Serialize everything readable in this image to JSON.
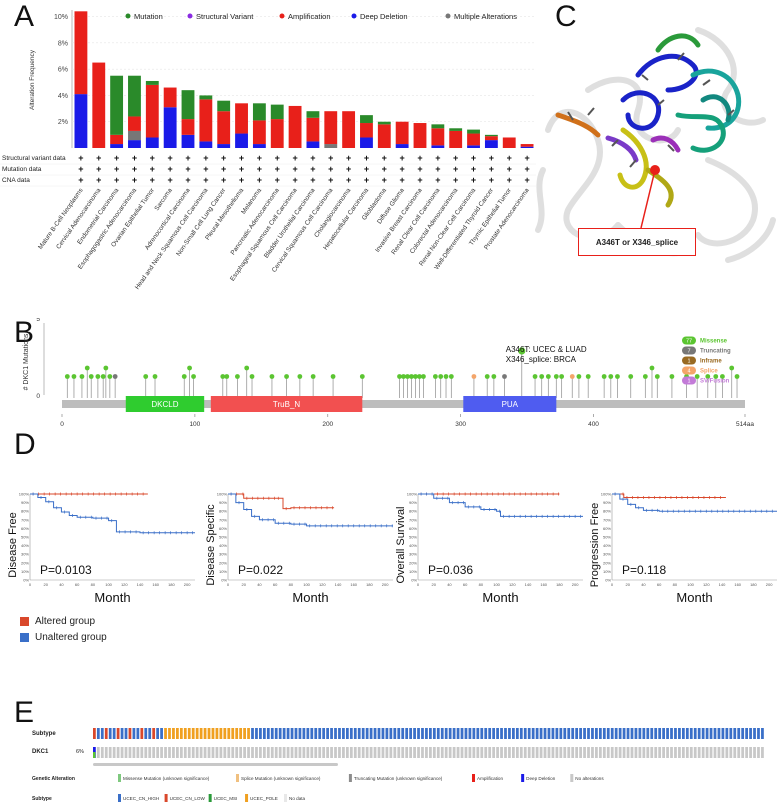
{
  "panels": {
    "a": "A",
    "b": "B",
    "c": "C",
    "d": "D",
    "e": "E"
  },
  "panel_a": {
    "legend": [
      {
        "label": "Mutation",
        "color": "#2a8a2a"
      },
      {
        "label": "Structural Variant",
        "color": "#8a2be2"
      },
      {
        "label": "Amplification",
        "color": "#e8201a"
      },
      {
        "label": "Deep Deletion",
        "color": "#1a1ae8"
      },
      {
        "label": "Multiple Alterations",
        "color": "#777777"
      }
    ],
    "row_labels": [
      "Structural variant data",
      "Mutation data",
      "CNA data"
    ],
    "ylabel": "Alteration Frequency"
  },
  "chart_data": [
    {
      "type": "bar",
      "stacked": true,
      "ylabel": "Alteration Frequency",
      "yticks": [
        "2%",
        "4%",
        "6%",
        "8%",
        "10%"
      ],
      "ylim": [
        0,
        10.5
      ],
      "categories": [
        "Mature B-Cell Neoplasms",
        "Cervical Adenocarcinoma",
        "Endometrial Carcinoma",
        "Esophagogastric Adenocarcinoma",
        "Ovarian Epithelial Tumor",
        "Sarcoma",
        "Adrenocortical Carcinoma",
        "Head and Neck Squamous Cell Carcinoma",
        "Non-Small Cell Lung Cancer",
        "Pleural Mesothelioma",
        "Melanoma",
        "Pancreatic Adenocarcinoma",
        "Esophageal Squamous Cell Carcinoma",
        "Bladder Urothelial Carcinoma",
        "Cervical Squamous Cell Carcinoma",
        "Cholangiocarcinoma",
        "Hepatocellular Carcinoma",
        "Glioblastoma",
        "Diffuse Glioma",
        "Invasive Breast Carcinoma",
        "Renal Clear Cell Carcinoma",
        "Colorectal Adenocarcinoma",
        "Renal Non-Clear Cell Carcinoma",
        "Well-Differentiated Thyroid Cancer",
        "Thymic Epithelial Tumor",
        "Prostate Adenocarcinoma"
      ],
      "series": [
        {
          "name": "Deep Deletion",
          "color": "#1a1ae8",
          "values": [
            4.1,
            0,
            0.3,
            0.6,
            0.8,
            3.1,
            1.0,
            0.5,
            0.3,
            1.1,
            0.3,
            0,
            0,
            0.5,
            0,
            0,
            0.8,
            0,
            0.3,
            0,
            0.2,
            0,
            0.2,
            0.6,
            0,
            0.1
          ]
        },
        {
          "name": "Multiple Alterations",
          "color": "#777777",
          "values": [
            0,
            0,
            0,
            0.7,
            0,
            0,
            0,
            0,
            0,
            0,
            0,
            0,
            0,
            0,
            0.3,
            0,
            0,
            0,
            0,
            0,
            0,
            0,
            0,
            0,
            0,
            0
          ]
        },
        {
          "name": "Amplification",
          "color": "#e8201a",
          "values": [
            6.3,
            6.5,
            0.7,
            1.1,
            4.0,
            1.5,
            1.2,
            3.2,
            2.5,
            2.3,
            1.8,
            2.2,
            3.2,
            1.8,
            2.5,
            2.8,
            1.1,
            1.8,
            1.7,
            1.9,
            1.3,
            1.3,
            0.9,
            0.3,
            0.8,
            0.2
          ]
        },
        {
          "name": "Structural Variant",
          "color": "#8a2be2",
          "values": [
            0,
            0,
            0,
            0,
            0,
            0,
            0,
            0,
            0,
            0,
            0,
            0,
            0,
            0,
            0,
            0,
            0,
            0,
            0,
            0,
            0,
            0,
            0,
            0,
            0,
            0
          ]
        },
        {
          "name": "Mutation",
          "color": "#2a8a2a",
          "values": [
            0,
            0,
            4.5,
            3.1,
            0.3,
            0,
            2.2,
            0.3,
            0.8,
            0,
            1.3,
            1.1,
            0,
            0.5,
            0,
            0,
            0.6,
            0.2,
            0,
            0,
            0.3,
            0.2,
            0.3,
            0.1,
            0,
            0
          ]
        }
      ]
    },
    {
      "type": "lollipop",
      "ylabel": "# DKC1 Mutations",
      "yticks": [
        "0",
        "5"
      ],
      "xticks": [
        "0",
        "100",
        "200",
        "300",
        "400",
        "514aa"
      ],
      "xlim": [
        0,
        514
      ],
      "domains": [
        {
          "name": "DKCLD",
          "start": 48,
          "end": 107,
          "color": "#2fcc2f"
        },
        {
          "name": "TruB_N",
          "start": 112,
          "end": 226,
          "color": "#f25050"
        },
        {
          "name": "PUA",
          "start": 302,
          "end": 372,
          "color": "#4f5cf0"
        }
      ],
      "annotation": [
        "A346T: UCEC & LUAD",
        "X346_splice: BRCA"
      ],
      "legend": [
        {
          "count": "77",
          "label": "Missense",
          "color": "#5bc531"
        },
        {
          "count": "7",
          "label": "Truncating",
          "color": "#777777"
        },
        {
          "count": "1",
          "label": "Inframe",
          "color": "#996a22"
        },
        {
          "count": "4",
          "label": "Splice",
          "color": "#f4a56a"
        },
        {
          "count": "1",
          "label": "SV/Fusion",
          "color": "#c37bd8"
        }
      ],
      "mutations": [
        {
          "pos": 4,
          "count": 1,
          "type": "missense"
        },
        {
          "pos": 9,
          "count": 1,
          "type": "missense"
        },
        {
          "pos": 15,
          "count": 1,
          "type": "missense"
        },
        {
          "pos": 19,
          "count": 2,
          "type": "missense"
        },
        {
          "pos": 22,
          "count": 1,
          "type": "missense"
        },
        {
          "pos": 27,
          "count": 1,
          "type": "missense"
        },
        {
          "pos": 31,
          "count": 1,
          "type": "missense"
        },
        {
          "pos": 33,
          "count": 2,
          "type": "missense"
        },
        {
          "pos": 36,
          "count": 1,
          "type": "missense"
        },
        {
          "pos": 40,
          "count": 1,
          "type": "truncating"
        },
        {
          "pos": 63,
          "count": 1,
          "type": "missense"
        },
        {
          "pos": 70,
          "count": 1,
          "type": "missense"
        },
        {
          "pos": 92,
          "count": 1,
          "type": "missense"
        },
        {
          "pos": 96,
          "count": 2,
          "type": "missense"
        },
        {
          "pos": 99,
          "count": 1,
          "type": "missense"
        },
        {
          "pos": 121,
          "count": 1,
          "type": "missense"
        },
        {
          "pos": 124,
          "count": 1,
          "type": "missense"
        },
        {
          "pos": 132,
          "count": 1,
          "type": "missense"
        },
        {
          "pos": 139,
          "count": 2,
          "type": "missense"
        },
        {
          "pos": 143,
          "count": 1,
          "type": "missense"
        },
        {
          "pos": 158,
          "count": 1,
          "type": "missense"
        },
        {
          "pos": 169,
          "count": 1,
          "type": "missense"
        },
        {
          "pos": 179,
          "count": 1,
          "type": "missense"
        },
        {
          "pos": 189,
          "count": 1,
          "type": "missense"
        },
        {
          "pos": 204,
          "count": 1,
          "type": "missense"
        },
        {
          "pos": 226,
          "count": 1,
          "type": "missense"
        },
        {
          "pos": 254,
          "count": 1,
          "type": "missense"
        },
        {
          "pos": 257,
          "count": 1,
          "type": "missense"
        },
        {
          "pos": 260,
          "count": 1,
          "type": "missense"
        },
        {
          "pos": 263,
          "count": 1,
          "type": "missense"
        },
        {
          "pos": 266,
          "count": 1,
          "type": "missense"
        },
        {
          "pos": 269,
          "count": 1,
          "type": "missense"
        },
        {
          "pos": 272,
          "count": 1,
          "type": "missense"
        },
        {
          "pos": 281,
          "count": 1,
          "type": "missense"
        },
        {
          "pos": 285,
          "count": 1,
          "type": "missense"
        },
        {
          "pos": 289,
          "count": 1,
          "type": "missense"
        },
        {
          "pos": 293,
          "count": 1,
          "type": "missense"
        },
        {
          "pos": 310,
          "count": 1,
          "type": "splice"
        },
        {
          "pos": 320,
          "count": 1,
          "type": "missense"
        },
        {
          "pos": 325,
          "count": 1,
          "type": "missense"
        },
        {
          "pos": 333,
          "count": 1,
          "type": "truncating"
        },
        {
          "pos": 346,
          "count": 4,
          "type": "missense"
        },
        {
          "pos": 356,
          "count": 1,
          "type": "missense"
        },
        {
          "pos": 361,
          "count": 1,
          "type": "missense"
        },
        {
          "pos": 366,
          "count": 1,
          "type": "missense"
        },
        {
          "pos": 372,
          "count": 1,
          "type": "missense"
        },
        {
          "pos": 376,
          "count": 1,
          "type": "missense"
        },
        {
          "pos": 384,
          "count": 1,
          "type": "splice"
        },
        {
          "pos": 389,
          "count": 1,
          "type": "missense"
        },
        {
          "pos": 396,
          "count": 1,
          "type": "missense"
        },
        {
          "pos": 408,
          "count": 1,
          "type": "missense"
        },
        {
          "pos": 413,
          "count": 1,
          "type": "missense"
        },
        {
          "pos": 418,
          "count": 1,
          "type": "missense"
        },
        {
          "pos": 428,
          "count": 1,
          "type": "missense"
        },
        {
          "pos": 439,
          "count": 1,
          "type": "missense"
        },
        {
          "pos": 444,
          "count": 2,
          "type": "missense"
        },
        {
          "pos": 448,
          "count": 1,
          "type": "missense"
        },
        {
          "pos": 459,
          "count": 1,
          "type": "missense"
        },
        {
          "pos": 470,
          "count": 1,
          "type": "missense"
        },
        {
          "pos": 478,
          "count": 1,
          "type": "missense"
        },
        {
          "pos": 486,
          "count": 1,
          "type": "missense"
        },
        {
          "pos": 492,
          "count": 1,
          "type": "missense"
        },
        {
          "pos": 497,
          "count": 1,
          "type": "missense"
        },
        {
          "pos": 504,
          "count": 2,
          "type": "missense"
        },
        {
          "pos": 508,
          "count": 1,
          "type": "missense"
        }
      ]
    },
    {
      "type": "line",
      "subtype": "kaplan-meier",
      "xlabel": "Month",
      "x": [
        0,
        20,
        40,
        60,
        80,
        100,
        120,
        140,
        160,
        180,
        200
      ],
      "ylim": [
        0,
        100
      ],
      "yticks": [
        "0%",
        "10%",
        "20%",
        "30%",
        "40%",
        "50%",
        "60%",
        "70%",
        "80%",
        "90%",
        "100%"
      ],
      "panels": [
        {
          "ylabel": "Disease Free",
          "pvalue": "P=0.0103",
          "series": [
            {
              "name": "Altered group",
              "color": "#d9482b",
              "points": [
                [
                  0,
                  100
                ],
                [
                  150,
                  100
                ]
              ]
            },
            {
              "name": "Unaltered group",
              "color": "#3a6fc8",
              "points": [
                [
                  0,
                  100
                ],
                [
                  10,
                  96
                ],
                [
                  20,
                  91
                ],
                [
                  30,
                  84
                ],
                [
                  40,
                  79
                ],
                [
                  50,
                  75
                ],
                [
                  60,
                  73
                ],
                [
                  80,
                  72
                ],
                [
                  100,
                  69
                ],
                [
                  110,
                  56
                ],
                [
                  140,
                  55
                ],
                [
                  210,
                  55
                ]
              ]
            }
          ]
        },
        {
          "ylabel": "Disease Specific",
          "pvalue": "P=0.022",
          "series": [
            {
              "name": "Altered group",
              "color": "#d9482b",
              "points": [
                [
                  0,
                  100
                ],
                [
                  15,
                  100
                ],
                [
                  20,
                  95
                ],
                [
                  60,
                  95
                ],
                [
                  70,
                  83
                ],
                [
                  80,
                  84
                ],
                [
                  135,
                  84
                ]
              ]
            },
            {
              "name": "Unaltered group",
              "color": "#3a6fc8",
              "points": [
                [
                  0,
                  100
                ],
                [
                  10,
                  90
                ],
                [
                  20,
                  82
                ],
                [
                  30,
                  74
                ],
                [
                  40,
                  70
                ],
                [
                  60,
                  66
                ],
                [
                  80,
                  65
                ],
                [
                  100,
                  63
                ],
                [
                  210,
                  63
                ]
              ]
            }
          ]
        },
        {
          "ylabel": "Overall Survival",
          "pvalue": "P=0.036",
          "series": [
            {
              "name": "Altered group",
              "color": "#d9482b",
              "points": [
                [
                  0,
                  100
                ],
                [
                  180,
                  100
                ]
              ]
            },
            {
              "name": "Unaltered group",
              "color": "#3a6fc8",
              "points": [
                [
                  0,
                  100
                ],
                [
                  20,
                  95
                ],
                [
                  40,
                  90
                ],
                [
                  60,
                  85
                ],
                [
                  80,
                  82
                ],
                [
                  100,
                  80
                ],
                [
                  105,
                  74
                ],
                [
                  210,
                  74
                ]
              ]
            }
          ]
        },
        {
          "ylabel": "Progression Free",
          "pvalue": "P=0.118",
          "series": [
            {
              "name": "Altered group",
              "color": "#d9482b",
              "points": [
                [
                  0,
                  100
                ],
                [
                  10,
                  100
                ],
                [
                  15,
                  96
                ],
                [
                  145,
                  96
                ]
              ]
            },
            {
              "name": "Unaltered group",
              "color": "#3a6fc8",
              "points": [
                [
                  0,
                  100
                ],
                [
                  10,
                  94
                ],
                [
                  20,
                  88
                ],
                [
                  30,
                  84
                ],
                [
                  40,
                  81
                ],
                [
                  60,
                  80
                ],
                [
                  210,
                  80
                ]
              ]
            }
          ]
        }
      ]
    }
  ],
  "panel_b": {
    "ylabel": "# DKC1 Mutations"
  },
  "panel_c": {
    "callout": "A346T or X346_splice"
  },
  "panel_d": {
    "legend": [
      {
        "label": "Altered group",
        "color": "#d9482b"
      },
      {
        "label": "Unaltered group",
        "color": "#3a6fc8"
      }
    ]
  },
  "panel_e": {
    "rows": [
      "Subtype",
      "DKC1"
    ],
    "dkc1_pct": "6%",
    "genetic_alteration_title": "Genetic Alteration",
    "ga_legend": [
      {
        "label": "Missense Mutation (unknown significance)",
        "color": "#7fc97f"
      },
      {
        "label": "Splice Mutation (unknown significance)",
        "color": "#f0c080"
      },
      {
        "label": "Truncating Mutation (unknown significance)",
        "color": "#8c8c8c"
      },
      {
        "label": "Amplification",
        "color": "#e8201a"
      },
      {
        "label": "Deep Deletion",
        "color": "#1a1ae8"
      },
      {
        "label": "No alterations",
        "color": "#c8c8c8"
      }
    ],
    "subtype_title": "Subtype",
    "subtype_legend": [
      {
        "label": "UCEC_CN_HIGH",
        "color": "#3a6fc8"
      },
      {
        "label": "UCEC_CN_LOW",
        "color": "#d9482b"
      },
      {
        "label": "UCEC_MSI",
        "color": "#2a9a3a"
      },
      {
        "label": "UCEC_POLE",
        "color": "#f0a020"
      },
      {
        "label": "No data",
        "color": "#e8e8e8"
      }
    ]
  }
}
